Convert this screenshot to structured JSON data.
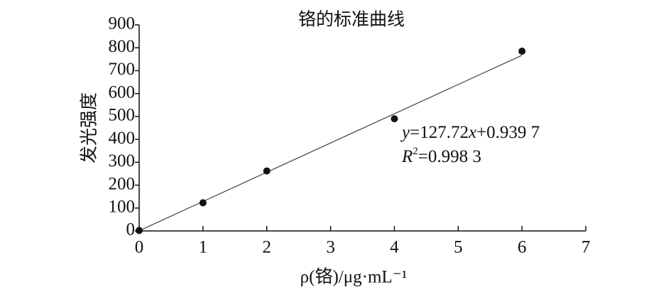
{
  "chart_data": {
    "type": "scatter",
    "title": "铬的标准曲线",
    "x_label": "ρ(铬)/μg·mL⁻¹",
    "y_label": "发光强度",
    "x": [
      0,
      1,
      2,
      4,
      6
    ],
    "values": [
      2,
      123,
      262,
      490,
      785
    ],
    "color": "#111111",
    "xlim": [
      0,
      7
    ],
    "xticks": [
      0,
      1,
      2,
      3,
      4,
      5,
      6,
      7
    ],
    "ylim": [
      0,
      900
    ],
    "yticks": [
      0,
      100,
      200,
      300,
      400,
      500,
      600,
      700,
      800,
      900
    ],
    "trendline": {
      "slope": 127.72,
      "intercept": 0.9397,
      "x_range": [
        0,
        6
      ],
      "color": "#444444"
    },
    "equation_parts": [
      "y",
      "=127.72",
      "x",
      "+0.939 7"
    ],
    "r2_parts": [
      "R",
      "2",
      "=0.998 3"
    ]
  }
}
